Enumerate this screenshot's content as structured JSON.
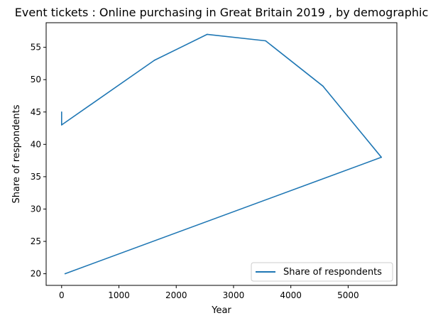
{
  "chart_data": {
    "type": "line",
    "title": "Event tickets : Online purchasing in Great Britain 2019 , by demographic",
    "xlabel": "Year",
    "ylabel": "Share of respondents",
    "xlim": [
      -270,
      5850
    ],
    "ylim": [
      18.2,
      58.8
    ],
    "xticks": [
      0,
      1000,
      2000,
      3000,
      4000,
      5000
    ],
    "yticks": [
      20,
      25,
      30,
      35,
      40,
      45,
      50,
      55
    ],
    "grid": false,
    "legend_position": "bottom-right",
    "series": [
      {
        "name": "Share of respondents",
        "color": "#1f77b4",
        "x": [
          0,
          0,
          1620,
          2540,
          3560,
          4560,
          5580,
          60
        ],
        "y": [
          45,
          43,
          53,
          57,
          56,
          49,
          38,
          20
        ]
      }
    ]
  }
}
